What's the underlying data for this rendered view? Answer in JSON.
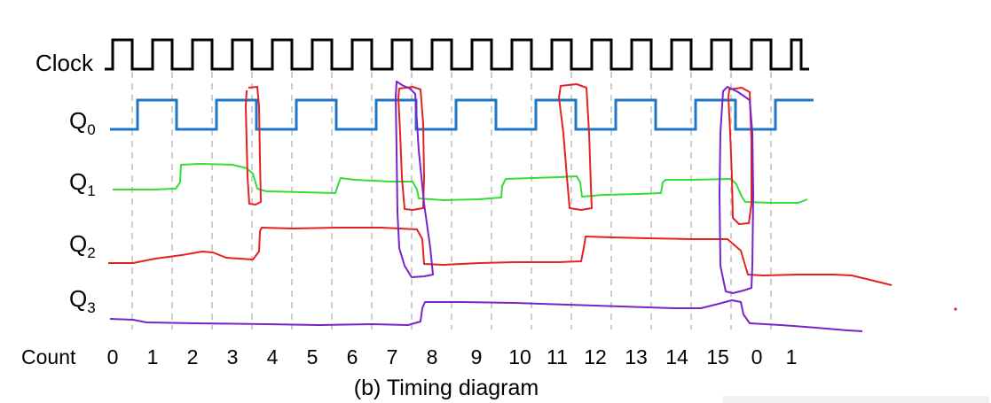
{
  "diagram": {
    "signals": [
      {
        "name": "Clock",
        "sub": ""
      },
      {
        "name": "Q",
        "sub": "0"
      },
      {
        "name": "Q",
        "sub": "1"
      },
      {
        "name": "Q",
        "sub": "2"
      },
      {
        "name": "Q",
        "sub": "3"
      }
    ],
    "count_label": "Count",
    "counts": [
      "0",
      "1",
      "2",
      "3",
      "4",
      "5",
      "6",
      "7",
      "8",
      "9",
      "10",
      "11",
      "12",
      "13",
      "14",
      "15",
      "0",
      "1"
    ],
    "caption": "(b) Timing diagram",
    "colors": {
      "clock": "#000000",
      "q0": "#1f77c4",
      "q1": "#33dd33",
      "q2": "#e32222",
      "q3": "#7a22cc",
      "grid": "#b9b9b9",
      "annotation_red": "#e32222",
      "annotation_purple": "#7a22cc"
    }
  }
}
